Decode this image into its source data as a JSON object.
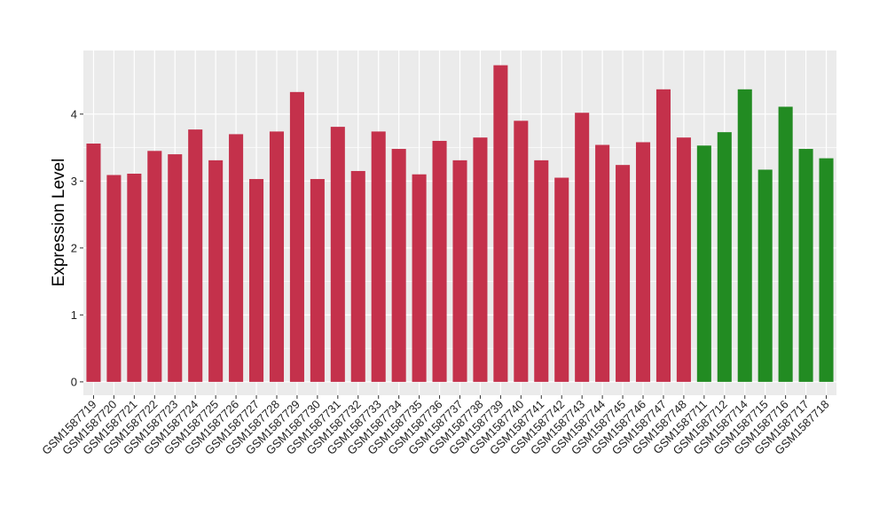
{
  "chart_data": {
    "type": "bar",
    "title": "",
    "xlabel": "",
    "ylabel": "Expression Level",
    "ylim": [
      -0.2,
      4.95
    ],
    "yticks": [
      0,
      1,
      2,
      3,
      4
    ],
    "grid": true,
    "legend": "none",
    "colors": {
      "group_a": "#c4314b",
      "group_b": "#228b22",
      "panel": "#ebebeb",
      "gridline": "#ffffff"
    },
    "categories": [
      "GSM1587719",
      "GSM1587720",
      "GSM1587721",
      "GSM1587722",
      "GSM1587723",
      "GSM1587724",
      "GSM1587725",
      "GSM1587726",
      "GSM1587727",
      "GSM1587728",
      "GSM1587729",
      "GSM1587730",
      "GSM1587731",
      "GSM1587732",
      "GSM1587733",
      "GSM1587734",
      "GSM1587735",
      "GSM1587736",
      "GSM1587737",
      "GSM1587738",
      "GSM1587739",
      "GSM1587740",
      "GSM1587741",
      "GSM1587742",
      "GSM1587743",
      "GSM1587744",
      "GSM1587745",
      "GSM1587746",
      "GSM1587747",
      "GSM1587748",
      "GSM1587711",
      "GSM1587712",
      "GSM1587714",
      "GSM1587715",
      "GSM1587716",
      "GSM1587717",
      "GSM1587718"
    ],
    "values": [
      3.56,
      3.09,
      3.11,
      3.45,
      3.4,
      3.77,
      3.31,
      3.7,
      3.03,
      3.74,
      4.33,
      3.03,
      3.81,
      3.15,
      3.74,
      3.48,
      3.1,
      3.6,
      3.31,
      3.65,
      4.73,
      3.9,
      3.31,
      3.05,
      4.02,
      3.54,
      3.24,
      3.58,
      4.37,
      3.65,
      3.53,
      3.73,
      4.37,
      3.17,
      4.11,
      3.48,
      3.34
    ],
    "groups": [
      "a",
      "a",
      "a",
      "a",
      "a",
      "a",
      "a",
      "a",
      "a",
      "a",
      "a",
      "a",
      "a",
      "a",
      "a",
      "a",
      "a",
      "a",
      "a",
      "a",
      "a",
      "a",
      "a",
      "a",
      "a",
      "a",
      "a",
      "a",
      "a",
      "a",
      "b",
      "b",
      "b",
      "b",
      "b",
      "b",
      "b"
    ]
  }
}
